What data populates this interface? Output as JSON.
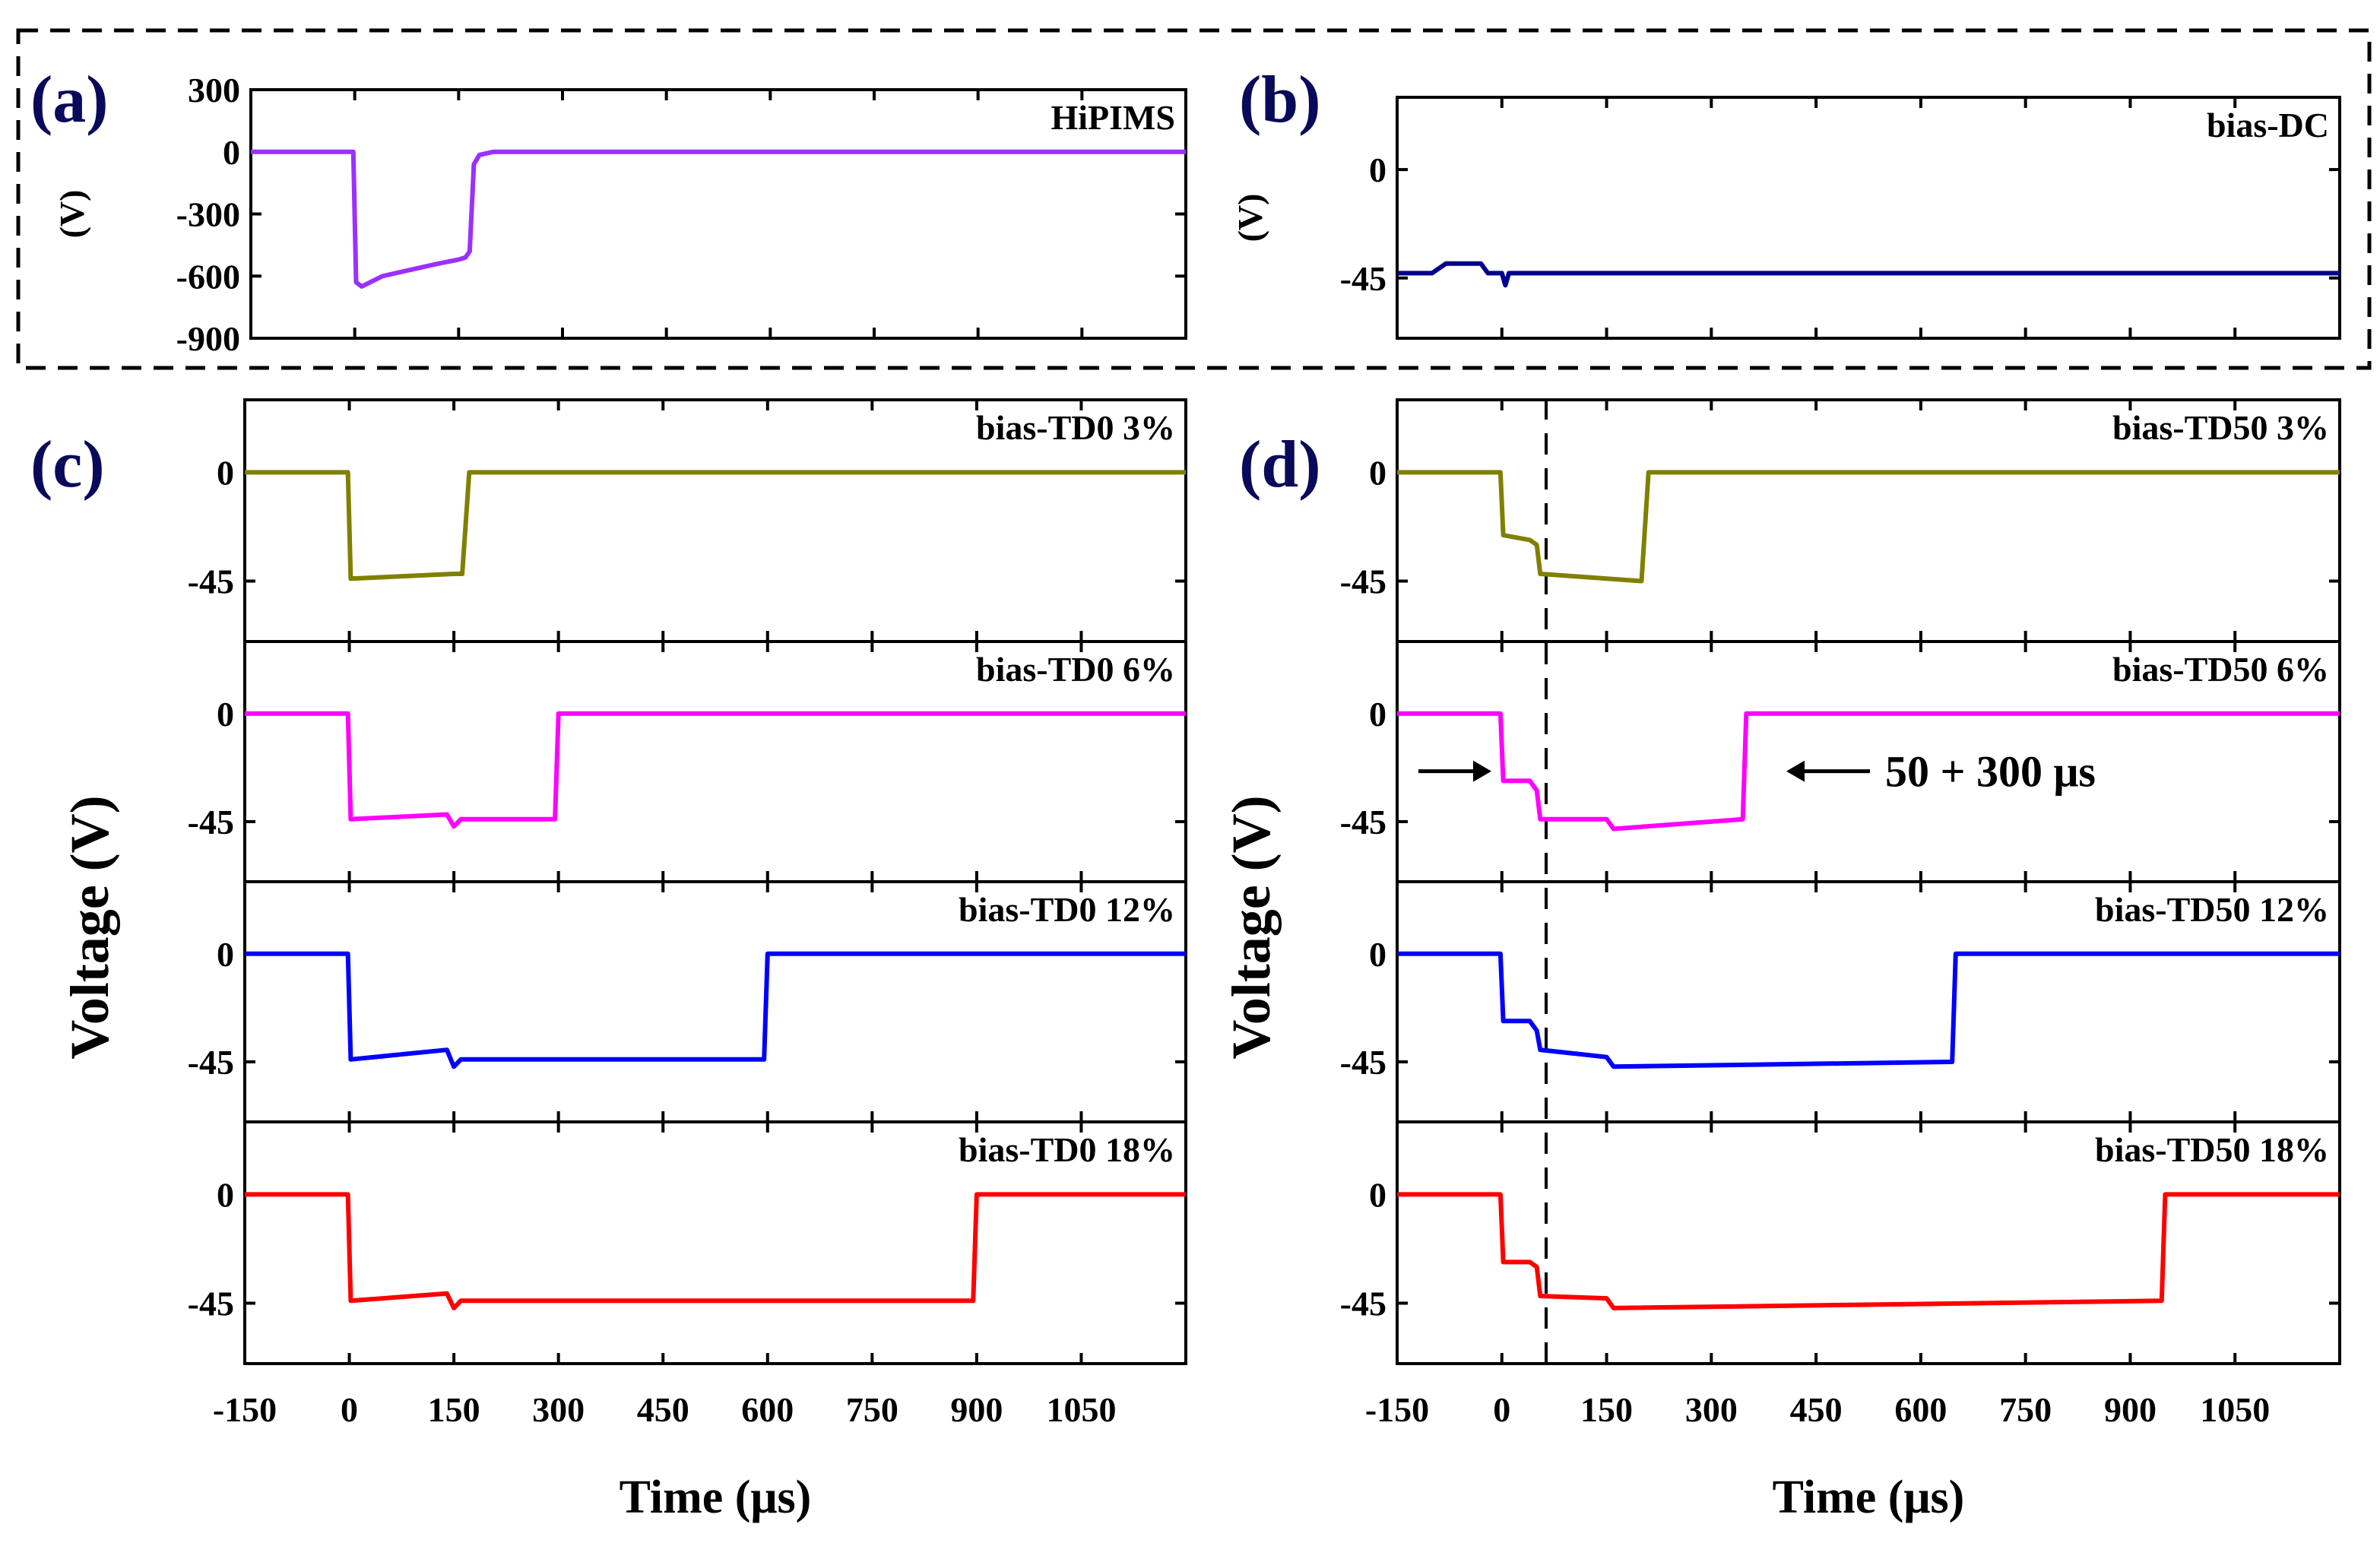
{
  "figure": {
    "time_axis_label": "Time (μs)",
    "voltage_axis_label": "Voltage (V)",
    "unit_axis_label": "(V)"
  },
  "chart_data": [
    {
      "id": "a",
      "panel_label": "(a)",
      "type": "line",
      "series_name": "HiPIMS",
      "color": "#9b30ff",
      "xlim": [
        -150,
        1200
      ],
      "ylim": [
        -900,
        300
      ],
      "yticks": [
        300,
        0,
        -300,
        -600,
        -900
      ],
      "ylabel": "(V)",
      "show_xticks": false,
      "xlabel": "",
      "points": [
        [
          -150,
          0
        ],
        [
          -2,
          0
        ],
        [
          2,
          -630
        ],
        [
          10,
          -650
        ],
        [
          40,
          -600
        ],
        [
          80,
          -570
        ],
        [
          120,
          -540
        ],
        [
          150,
          -520
        ],
        [
          160,
          -510
        ],
        [
          166,
          -480
        ],
        [
          172,
          -60
        ],
        [
          180,
          -15
        ],
        [
          200,
          0
        ],
        [
          1200,
          0
        ]
      ]
    },
    {
      "id": "b",
      "panel_label": "(b)",
      "type": "line",
      "series_name": "bias-DC",
      "color": "#00008b",
      "xlim": [
        -150,
        1200
      ],
      "ylim": [
        -70,
        30
      ],
      "yticks": [
        0,
        -45
      ],
      "ylabel": "(V)",
      "show_xticks": false,
      "xlabel": "",
      "points": [
        [
          -150,
          -43
        ],
        [
          -100,
          -43
        ],
        [
          -80,
          -39
        ],
        [
          -30,
          -39
        ],
        [
          -20,
          -43
        ],
        [
          0,
          -43
        ],
        [
          5,
          -48
        ],
        [
          10,
          -43
        ],
        [
          1200,
          -43
        ]
      ]
    },
    {
      "id": "c1",
      "panel_label": "(c)",
      "type": "line",
      "series_name": "bias-TD0 3%",
      "color": "#808000",
      "xlim": [
        -150,
        1200
      ],
      "ylim": [
        -70,
        30
      ],
      "yticks": [
        0,
        -45
      ],
      "ylabel": "",
      "show_xticks": false,
      "xlabel": "",
      "points": [
        [
          -150,
          0
        ],
        [
          -2,
          0
        ],
        [
          2,
          -44
        ],
        [
          150,
          -42
        ],
        [
          162,
          -42
        ],
        [
          172,
          0
        ],
        [
          1200,
          0
        ]
      ]
    },
    {
      "id": "c2",
      "panel_label": "",
      "type": "line",
      "series_name": "bias-TD0 6%",
      "color": "#ff00ff",
      "xlim": [
        -150,
        1200
      ],
      "ylim": [
        -70,
        30
      ],
      "yticks": [
        0,
        -45
      ],
      "ylabel": "",
      "show_xticks": false,
      "xlabel": "",
      "points": [
        [
          -150,
          0
        ],
        [
          -2,
          0
        ],
        [
          2,
          -44
        ],
        [
          140,
          -42
        ],
        [
          150,
          -47
        ],
        [
          160,
          -44
        ],
        [
          295,
          -44
        ],
        [
          300,
          0
        ],
        [
          1200,
          0
        ]
      ]
    },
    {
      "id": "c3",
      "panel_label": "",
      "type": "line",
      "series_name": "bias-TD0 12%",
      "color": "#0000ff",
      "xlim": [
        -150,
        1200
      ],
      "ylim": [
        -70,
        30
      ],
      "yticks": [
        0,
        -45
      ],
      "ylabel": "",
      "show_xticks": false,
      "xlabel": "",
      "points": [
        [
          -150,
          0
        ],
        [
          -2,
          0
        ],
        [
          2,
          -44
        ],
        [
          140,
          -40
        ],
        [
          150,
          -47
        ],
        [
          160,
          -44
        ],
        [
          595,
          -44
        ],
        [
          600,
          0
        ],
        [
          1200,
          0
        ]
      ]
    },
    {
      "id": "c4",
      "panel_label": "",
      "type": "line",
      "series_name": "bias-TD0 18%",
      "color": "#ff0000",
      "xlim": [
        -150,
        1200
      ],
      "ylim": [
        -70,
        30
      ],
      "yticks": [
        0,
        -45
      ],
      "ylabel": "",
      "show_xticks": true,
      "xlabel": "Time (μs)",
      "xticks": [
        -150,
        0,
        150,
        300,
        450,
        600,
        750,
        900,
        1050
      ],
      "points": [
        [
          -150,
          0
        ],
        [
          -2,
          0
        ],
        [
          2,
          -44
        ],
        [
          140,
          -41
        ],
        [
          150,
          -47
        ],
        [
          160,
          -44
        ],
        [
          895,
          -44
        ],
        [
          900,
          0
        ],
        [
          1200,
          0
        ]
      ]
    },
    {
      "id": "d1",
      "panel_label": "(d)",
      "type": "line",
      "series_name": "bias-TD50 3%",
      "color": "#808000",
      "xlim": [
        -150,
        1200
      ],
      "ylim": [
        -70,
        30
      ],
      "yticks": [
        0,
        -45
      ],
      "ylabel": "",
      "show_xticks": false,
      "xlabel": "",
      "points": [
        [
          -150,
          0
        ],
        [
          -2,
          0
        ],
        [
          2,
          -26
        ],
        [
          40,
          -28
        ],
        [
          50,
          -30
        ],
        [
          55,
          -42
        ],
        [
          200,
          -45
        ],
        [
          210,
          0
        ],
        [
          1200,
          0
        ]
      ]
    },
    {
      "id": "d2",
      "panel_label": "",
      "type": "line",
      "series_name": "bias-TD50 6%",
      "color": "#ff00ff",
      "xlim": [
        -150,
        1200
      ],
      "ylim": [
        -70,
        30
      ],
      "yticks": [
        0,
        -45
      ],
      "ylabel": "",
      "show_xticks": false,
      "xlabel": "",
      "points": [
        [
          -150,
          0
        ],
        [
          -2,
          0
        ],
        [
          2,
          -28
        ],
        [
          40,
          -28
        ],
        [
          50,
          -32
        ],
        [
          55,
          -44
        ],
        [
          150,
          -44
        ],
        [
          160,
          -48
        ],
        [
          345,
          -44
        ],
        [
          350,
          0
        ],
        [
          1200,
          0
        ]
      ],
      "annotation": "50 + 300 μs"
    },
    {
      "id": "d3",
      "panel_label": "",
      "type": "line",
      "series_name": "bias-TD50 12%",
      "color": "#0000ff",
      "xlim": [
        -150,
        1200
      ],
      "ylim": [
        -70,
        30
      ],
      "yticks": [
        0,
        -45
      ],
      "ylabel": "",
      "show_xticks": false,
      "xlabel": "",
      "points": [
        [
          -150,
          0
        ],
        [
          -2,
          0
        ],
        [
          2,
          -28
        ],
        [
          40,
          -28
        ],
        [
          50,
          -32
        ],
        [
          55,
          -40
        ],
        [
          150,
          -43
        ],
        [
          160,
          -47
        ],
        [
          645,
          -45
        ],
        [
          650,
          0
        ],
        [
          1200,
          0
        ]
      ]
    },
    {
      "id": "d4",
      "panel_label": "",
      "type": "line",
      "series_name": "bias-TD50 18%",
      "color": "#ff0000",
      "xlim": [
        -150,
        1200
      ],
      "ylim": [
        -70,
        30
      ],
      "yticks": [
        0,
        -45
      ],
      "ylabel": "",
      "show_xticks": true,
      "xlabel": "Time (μs)",
      "xticks": [
        -150,
        0,
        150,
        300,
        450,
        600,
        750,
        900,
        1050
      ],
      "points": [
        [
          -150,
          0
        ],
        [
          -2,
          0
        ],
        [
          2,
          -28
        ],
        [
          40,
          -28
        ],
        [
          50,
          -30
        ],
        [
          55,
          -42
        ],
        [
          150,
          -43
        ],
        [
          160,
          -47
        ],
        [
          945,
          -44
        ],
        [
          950,
          0
        ],
        [
          1200,
          0
        ]
      ]
    }
  ]
}
